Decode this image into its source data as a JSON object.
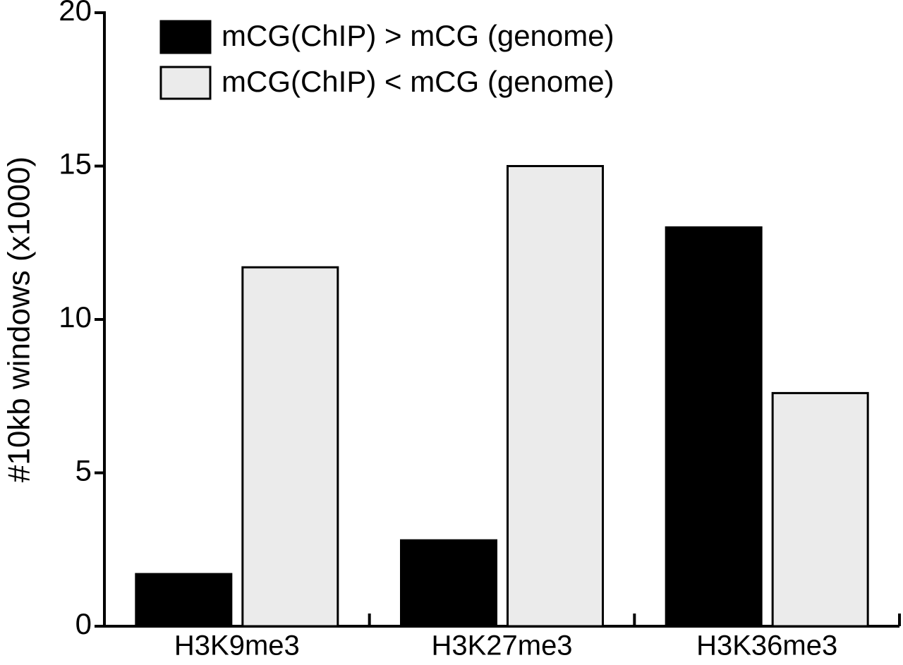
{
  "chart_data": {
    "type": "bar",
    "y_label": "#10kb windows (x1000)",
    "categories": [
      "H3K9me3",
      "H3K27me3",
      "H3K36me3"
    ],
    "series": [
      {
        "name": "mCG(ChIP) > mCG (genome)",
        "color": "#000000",
        "values": [
          1.7,
          2.8,
          13.0
        ]
      },
      {
        "name": "mCG(ChIP) < mCG (genome)",
        "color": "#ebebeb",
        "values": [
          11.7,
          15.0,
          7.6
        ]
      }
    ],
    "ylim": [
      0,
      20
    ],
    "yticks": [
      0,
      5,
      10,
      15,
      20
    ]
  }
}
